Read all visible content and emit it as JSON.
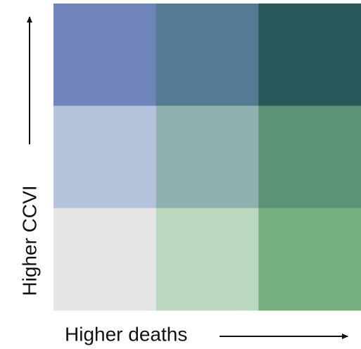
{
  "legend": {
    "x_label": "Higher deaths",
    "y_label": "Higher CCVI",
    "rows": [
      [
        "#6f84b8",
        "#557a93",
        "#29595a"
      ],
      [
        "#b4c3dc",
        "#8fb2b0",
        "#5b9278"
      ],
      [
        "#e6e6e6",
        "#b9d8bd",
        "#77b080"
      ]
    ]
  }
}
